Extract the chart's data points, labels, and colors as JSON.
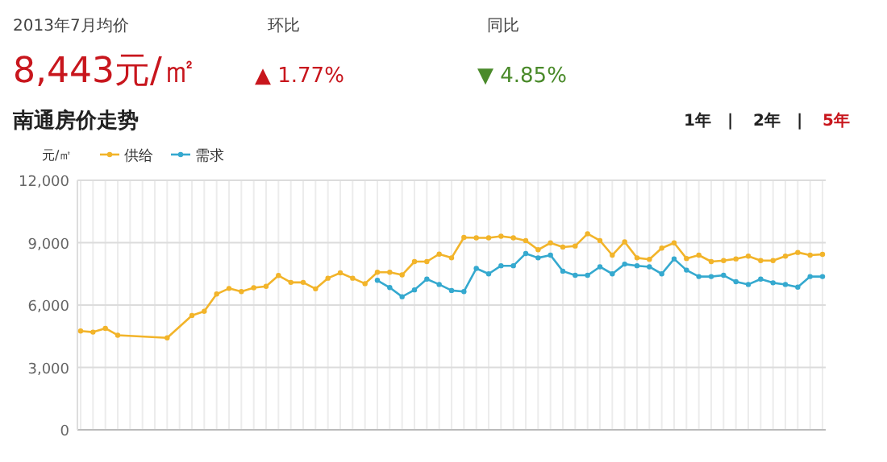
{
  "chart_data": {
    "type": "line",
    "title": "南通房价走势",
    "ylabel": "元/㎡",
    "annotations": [
      "2013年7月均价",
      "8,443元/㎡",
      "环比",
      "▲ 1.77%",
      "同比",
      "▼ 4.85%",
      "1年",
      "|",
      "2年",
      "|",
      "5年"
    ],
    "categories": [
      null,
      null,
      null,
      null,
      null,
      null,
      null,
      null,
      null,
      null,
      null,
      null,
      null,
      null,
      null,
      null,
      null,
      null,
      null,
      null,
      null,
      null,
      null,
      null,
      null,
      null,
      null,
      null,
      null,
      null,
      null,
      null,
      null,
      null,
      null,
      null,
      null,
      null,
      null,
      null,
      null,
      null,
      null,
      null,
      null,
      null,
      null,
      null,
      null,
      null,
      null,
      null,
      null,
      null,
      null,
      null,
      null,
      null,
      null,
      null,
      null
    ],
    "series": [
      {
        "name": "供给",
        "color": "#f2b42a",
        "values": [
          4750,
          4700,
          4880,
          4550,
          null,
          null,
          null,
          4420,
          null,
          5500,
          5700,
          6530,
          6800,
          6650,
          6830,
          6900,
          7420,
          7090,
          7090,
          6780,
          7290,
          7550,
          7290,
          7030,
          7580,
          7580,
          7450,
          8090,
          8090,
          8450,
          8270,
          9250,
          9230,
          9230,
          9310,
          9230,
          9100,
          8660,
          8990,
          8790,
          8840,
          9430,
          9100,
          8400,
          9040,
          8270,
          8200,
          8740,
          8990,
          8240,
          8400,
          8090,
          8140,
          8220,
          8350,
          8140,
          8140,
          8350,
          8530,
          8400,
          8440
        ]
      },
      {
        "name": "需求",
        "color": "#35a9cf",
        "values": [
          null,
          null,
          null,
          null,
          null,
          null,
          null,
          null,
          null,
          null,
          null,
          null,
          null,
          null,
          null,
          null,
          null,
          null,
          null,
          null,
          null,
          null,
          null,
          null,
          7190,
          6840,
          6400,
          6730,
          7250,
          6990,
          6700,
          6650,
          7760,
          7500,
          7890,
          7890,
          8480,
          8270,
          8400,
          7630,
          7430,
          7430,
          7840,
          7500,
          7970,
          7890,
          7840,
          7500,
          8220,
          7680,
          7370,
          7370,
          7430,
          7120,
          6990,
          7250,
          7070,
          6990,
          6860,
          7370,
          7370
        ]
      }
    ],
    "ylim": [
      0,
      12000
    ],
    "yticks": [
      {
        "value": 0,
        "label": "0"
      },
      {
        "value": 3000,
        "label": "3,000"
      },
      {
        "value": 6000,
        "label": "6,000"
      },
      {
        "value": 9000,
        "label": "9,000"
      },
      {
        "value": 12000,
        "label": "12,000"
      }
    ],
    "grid": true,
    "legend": "top left",
    "marker": "circle",
    "line_style": "solid"
  }
}
